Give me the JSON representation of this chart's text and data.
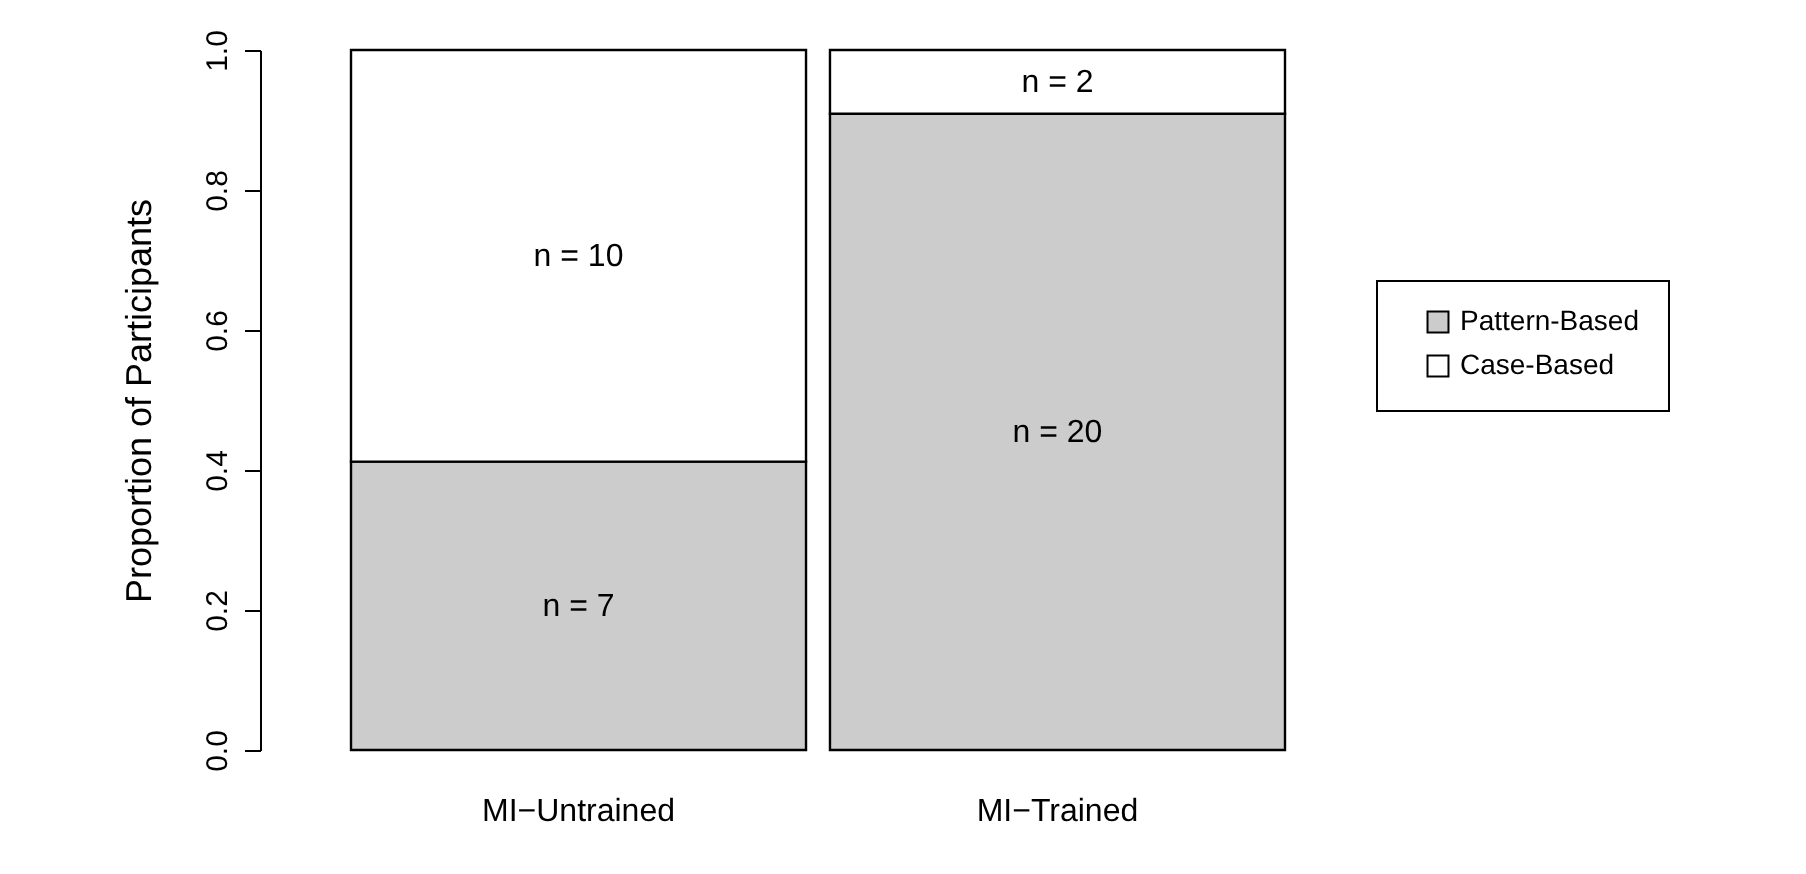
{
  "chart_data": {
    "type": "bar",
    "stacked": true,
    "ylabel": "Proportion of Participants",
    "categories": [
      "MI−Untrained",
      "MI−Trained"
    ],
    "series": [
      {
        "name": "Pattern-Based",
        "color": "#cccccc",
        "values": [
          0.412,
          0.909
        ]
      },
      {
        "name": "Case-Based",
        "color": "#ffffff",
        "values": [
          0.588,
          0.091
        ]
      }
    ],
    "annotations": [
      "n = 7",
      "n = 20",
      "n = 10",
      "n = 2"
    ],
    "ylim": [
      0,
      1
    ],
    "yticks": [
      {
        "value": 0,
        "label": "0.0"
      },
      {
        "value": 0.2,
        "label": "0.2"
      },
      {
        "value": 0.4,
        "label": "0.4"
      },
      {
        "value": 0.6,
        "label": "0.6"
      },
      {
        "value": 0.8,
        "label": "0.8"
      },
      {
        "value": 1,
        "label": "1.0"
      }
    ],
    "grid": false,
    "legend": "right"
  }
}
